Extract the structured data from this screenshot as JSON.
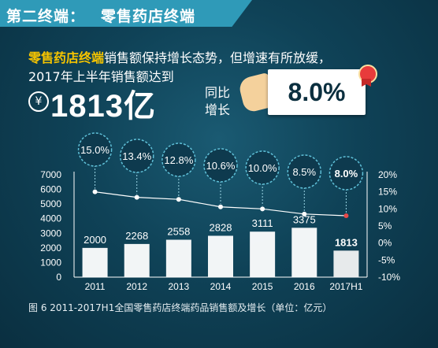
{
  "banner": {
    "prefix": "第二终端：",
    "title": "零售药店终端"
  },
  "intro": {
    "highlight": "零售药店终端",
    "line1_rest": "销售额保持增长态势，但增速有所放缓，",
    "line2": "2017年上半年销售额达到",
    "yen_symbol": "¥",
    "amount": "1813亿",
    "yoy_line1": "同比",
    "yoy_line2": "增长",
    "yoy_value": "8.0%"
  },
  "caption": "图 6  2011-2017H1全国零售药店终端药品销售额及增长（单位：亿元）",
  "colors": {
    "bar": "#ffffff",
    "bar_last": "#f3f3f3",
    "line": "#ffffff",
    "bubble_fill": "#0e3a4e",
    "bubble_stroke": "#5fc0d8",
    "last_point": "#e84a4a"
  },
  "chart_data": {
    "type": "bar",
    "categories": [
      "2011",
      "2012",
      "2013",
      "2014",
      "2015",
      "2016",
      "2017H1"
    ],
    "series": [
      {
        "values": [
          2000,
          2268,
          2558,
          2828,
          3111,
          3375,
          1813
        ]
      },
      {
        "values": [
          15.0,
          13.4,
          12.8,
          10.6,
          10.0,
          8.5,
          8.0
        ]
      }
    ],
    "bar_labels": [
      "2000",
      "2268",
      "2558",
      "2828",
      "3111",
      "3375",
      "1813"
    ],
    "growth_labels": [
      "15.0%",
      "13.4%",
      "12.8%",
      "10.6%",
      "10.0%",
      "8.5%",
      "8.0%"
    ],
    "y_left": {
      "min": 0,
      "max": 7000,
      "ticks": [
        "0",
        "1000",
        "2000",
        "3000",
        "4000",
        "5000",
        "6000",
        "7000"
      ]
    },
    "y_right": {
      "min": -10,
      "max": 20,
      "ticks": [
        "-10%",
        "-5%",
        "0%",
        "5%",
        "10%",
        "15%",
        "20%"
      ]
    },
    "grid": false,
    "legend": "none"
  }
}
